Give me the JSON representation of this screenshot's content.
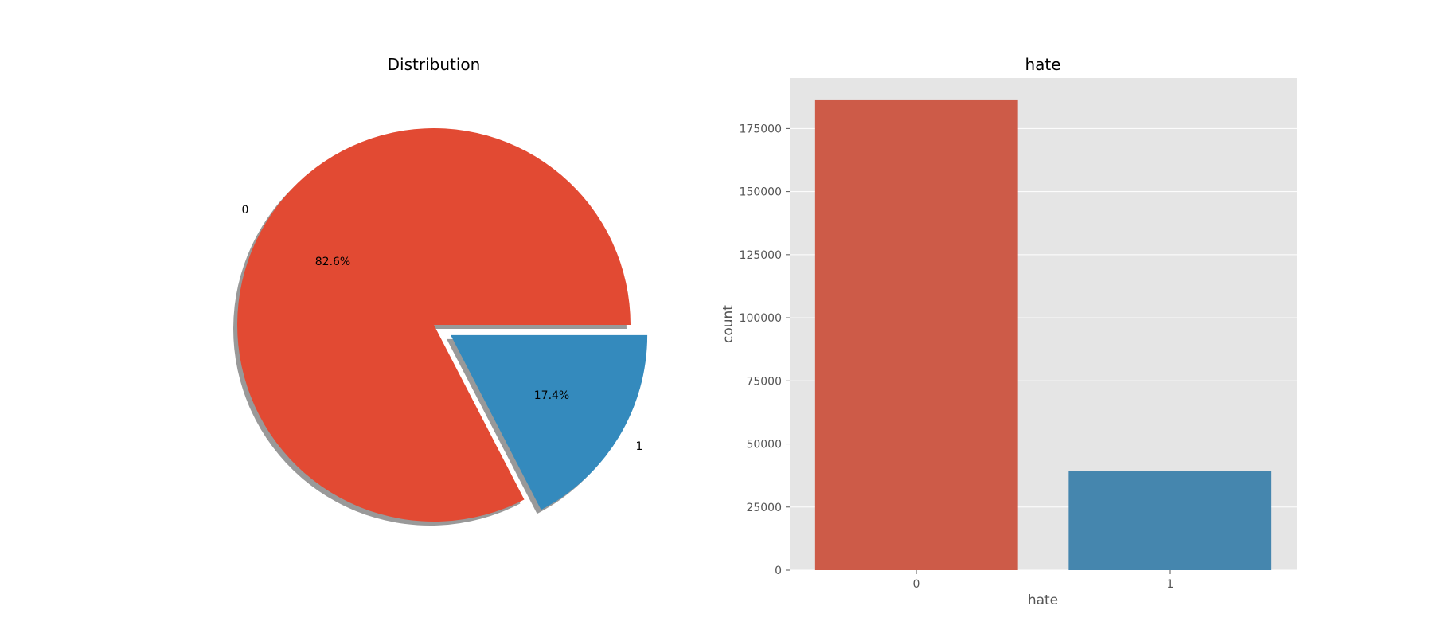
{
  "chart_data": [
    {
      "type": "pie",
      "title": "Distribution",
      "labels": [
        "0",
        "1"
      ],
      "values": [
        82.6,
        17.4
      ],
      "autopct": [
        "82.6%",
        "17.4%"
      ],
      "explode": [
        0,
        0.1
      ],
      "shadow": true,
      "colors": [
        "#E24A33",
        "#348ABD"
      ]
    },
    {
      "type": "bar",
      "title": "hate",
      "categories": [
        "0",
        "1"
      ],
      "values": [
        186500,
        39200
      ],
      "xlabel": "hate",
      "ylabel": "count",
      "ylim": [
        0,
        195000
      ],
      "yticks": [
        0,
        25000,
        50000,
        75000,
        100000,
        125000,
        150000,
        175000
      ],
      "grid": true,
      "background": "#E5E5E5",
      "colors": [
        "#CD5B48",
        "#4586AE"
      ]
    }
  ]
}
